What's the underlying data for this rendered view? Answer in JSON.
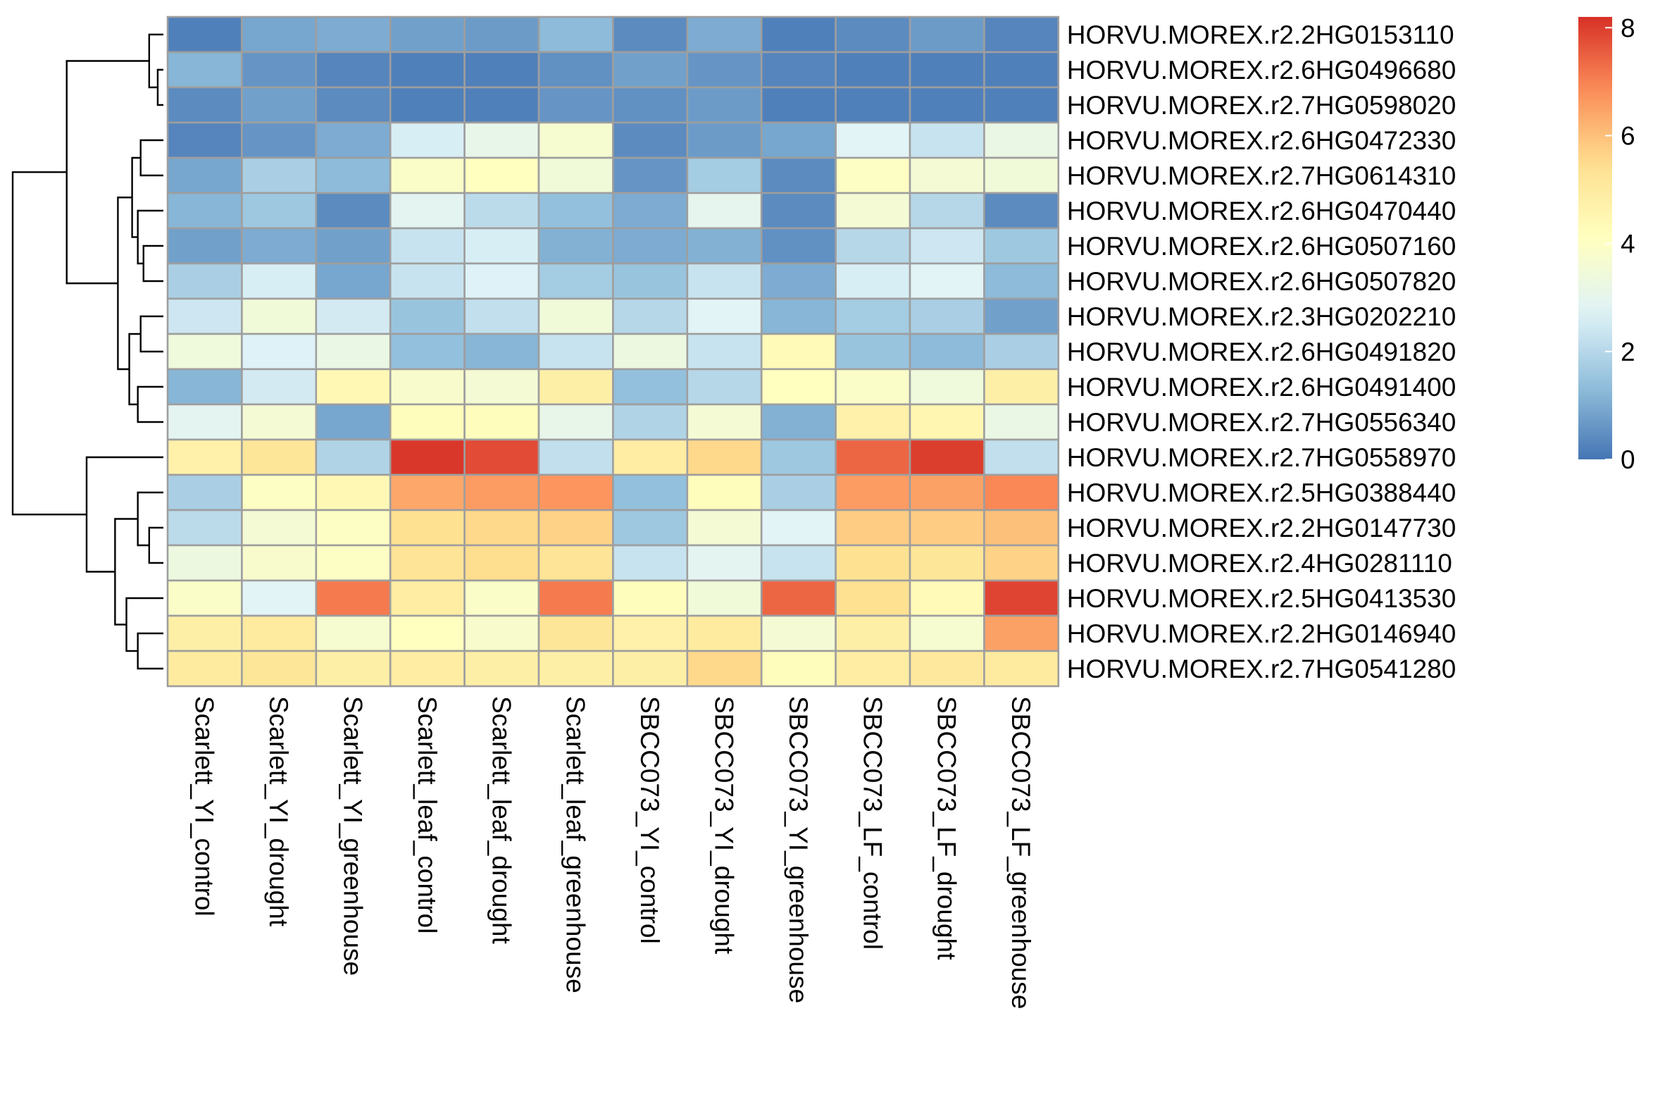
{
  "chart_data": {
    "type": "heatmap",
    "columns": [
      "Scarlett_YI_control",
      "Scarlett_YI_drought",
      "Scarlett_YI_greenhouse",
      "Scarlett_leaf_control",
      "Scarlett_leaf_drought",
      "Scarlett_leaf_greenhouse",
      "SBCC073_YI_control",
      "SBCC073_YI_drought",
      "SBCC073_YI_greenhouse",
      "SBCC073_LF_control",
      "SBCC073_LF_drought",
      "SBCC073_LF_greenhouse"
    ],
    "rows": [
      "HORVU.MOREX.r2.2HG0153110",
      "HORVU.MOREX.r2.6HG0496680",
      "HORVU.MOREX.r2.7HG0598020",
      "HORVU.MOREX.r2.6HG0472330",
      "HORVU.MOREX.r2.7HG0614310",
      "HORVU.MOREX.r2.6HG0470440",
      "HORVU.MOREX.r2.6HG0507160",
      "HORVU.MOREX.r2.6HG0507820",
      "HORVU.MOREX.r2.3HG0202210",
      "HORVU.MOREX.r2.6HG0491820",
      "HORVU.MOREX.r2.6HG0491400",
      "HORVU.MOREX.r2.7HG0556340",
      "HORVU.MOREX.r2.7HG0558970",
      "HORVU.MOREX.r2.5HG0388440",
      "HORVU.MOREX.r2.2HG0147730",
      "HORVU.MOREX.r2.4HG0281110",
      "HORVU.MOREX.r2.5HG0413530",
      "HORVU.MOREX.r2.2HG0146940",
      "HORVU.MOREX.r2.7HG0541280"
    ],
    "values": [
      [
        0.2,
        0.9,
        1.0,
        0.8,
        0.7,
        1.3,
        0.4,
        1.0,
        0.2,
        0.4,
        0.7,
        0.3
      ],
      [
        1.2,
        0.6,
        0.3,
        0.2,
        0.2,
        0.5,
        0.8,
        0.6,
        0.3,
        0.2,
        0.2,
        0.2
      ],
      [
        0.4,
        0.8,
        0.4,
        0.2,
        0.2,
        0.6,
        0.5,
        0.7,
        0.2,
        0.2,
        0.2,
        0.2
      ],
      [
        0.3,
        0.6,
        1.0,
        2.6,
        3.1,
        3.7,
        0.4,
        0.7,
        0.9,
        2.8,
        2.3,
        3.2
      ],
      [
        0.9,
        1.8,
        1.3,
        3.9,
        4.1,
        3.5,
        0.6,
        1.7,
        0.4,
        4.0,
        3.6,
        3.5
      ],
      [
        1.2,
        1.6,
        0.4,
        2.9,
        2.1,
        1.4,
        1.0,
        3.0,
        0.4,
        3.6,
        2.0,
        0.4
      ],
      [
        0.8,
        1.0,
        0.8,
        2.3,
        2.6,
        1.1,
        1.0,
        1.1,
        0.5,
        2.0,
        2.4,
        1.6
      ],
      [
        1.8,
        2.6,
        0.9,
        2.3,
        2.7,
        1.7,
        1.5,
        2.3,
        1.0,
        2.6,
        2.8,
        1.3
      ],
      [
        2.4,
        3.5,
        2.5,
        1.5,
        2.2,
        3.5,
        2.0,
        2.8,
        1.2,
        1.7,
        1.8,
        0.8
      ],
      [
        3.4,
        2.7,
        3.2,
        1.4,
        1.2,
        2.3,
        3.3,
        2.3,
        4.3,
        1.5,
        1.3,
        1.8
      ],
      [
        1.2,
        2.5,
        4.4,
        3.8,
        3.6,
        4.8,
        1.4,
        2.0,
        4.1,
        3.9,
        3.4,
        4.8
      ],
      [
        2.9,
        3.6,
        0.9,
        4.2,
        4.2,
        3.1,
        1.9,
        3.6,
        1.1,
        4.7,
        4.5,
        3.2
      ],
      [
        4.7,
        5.2,
        1.9,
        8.1,
        7.8,
        2.2,
        4.9,
        5.6,
        1.6,
        7.4,
        8.0,
        2.2
      ],
      [
        1.8,
        4.0,
        4.4,
        6.4,
        6.6,
        6.7,
        1.4,
        4.2,
        1.8,
        6.6,
        6.5,
        6.9
      ],
      [
        2.1,
        3.6,
        4.0,
        5.4,
        5.6,
        5.7,
        1.6,
        3.6,
        2.8,
        5.8,
        5.8,
        6.0
      ],
      [
        3.3,
        3.8,
        4.0,
        5.3,
        5.5,
        5.3,
        2.3,
        2.9,
        2.3,
        5.4,
        5.2,
        5.7
      ],
      [
        3.9,
        2.8,
        7.1,
        4.9,
        3.9,
        7.1,
        4.2,
        3.5,
        7.4,
        5.4,
        4.3,
        7.9
      ],
      [
        4.8,
        5.0,
        3.7,
        4.1,
        3.8,
        5.2,
        4.7,
        5.0,
        3.6,
        4.8,
        3.7,
        6.5
      ],
      [
        5.0,
        5.2,
        4.8,
        4.9,
        4.8,
        4.8,
        4.8,
        5.6,
        4.2,
        4.9,
        5.1,
        5.0
      ]
    ],
    "colorbar": {
      "ticks": [
        0,
        2,
        4,
        6,
        8
      ],
      "range": [
        0,
        8.2
      ],
      "colors": [
        "#4575B4",
        "#91BFDB",
        "#E0F3F8",
        "#FFFFBF",
        "#FEE090",
        "#FC8D59",
        "#D73027"
      ]
    },
    "row_dendrogram": [
      [
        1,
        2,
        0.2
      ],
      [
        0,
        19,
        0.5
      ],
      [
        3,
        4,
        0.8
      ],
      [
        6,
        7,
        0.7
      ],
      [
        5,
        22,
        0.9
      ],
      [
        21,
        23,
        1.1
      ],
      [
        8,
        9,
        0.8
      ],
      [
        10,
        11,
        0.9
      ],
      [
        25,
        26,
        1.2
      ],
      [
        24,
        27,
        1.6
      ],
      [
        14,
        15,
        0.5
      ],
      [
        13,
        29,
        0.9
      ],
      [
        17,
        18,
        0.9
      ],
      [
        16,
        31,
        1.3
      ],
      [
        30,
        32,
        1.7
      ],
      [
        12,
        33,
        2.7
      ],
      [
        20,
        28,
        3.4
      ],
      [
        34,
        35,
        5.3
      ]
    ],
    "cell_border_color": "#9E9E9E"
  }
}
